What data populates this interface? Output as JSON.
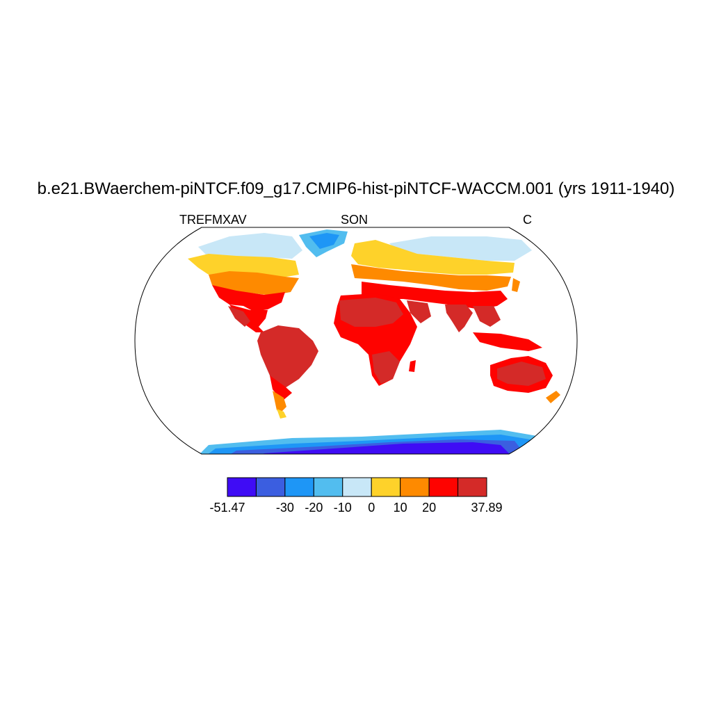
{
  "title": "b.e21.BWaerchem-piNTCF.f09_g17.CMIP6-hist-piNTCF-WACCM.001 (yrs 1911-1940)",
  "left_string": "TREFMXAV",
  "center_string": "SON",
  "right_string": "C",
  "colorbar": {
    "colors": [
      "#3f0cf5",
      "#3b5ee0",
      "#1e96f6",
      "#52bdef",
      "#c8e7f7",
      "#fed22a",
      "#fe8a00",
      "#fe0300",
      "#d42a28"
    ],
    "boundaries": [
      -51.47,
      -40,
      -30,
      -20,
      -10,
      0,
      10,
      20,
      30,
      37.89
    ],
    "labels": [
      "-51.47",
      "-30",
      "-20",
      "-10",
      "0",
      "10",
      "20",
      "37.89"
    ]
  },
  "projection": "Robinson"
}
